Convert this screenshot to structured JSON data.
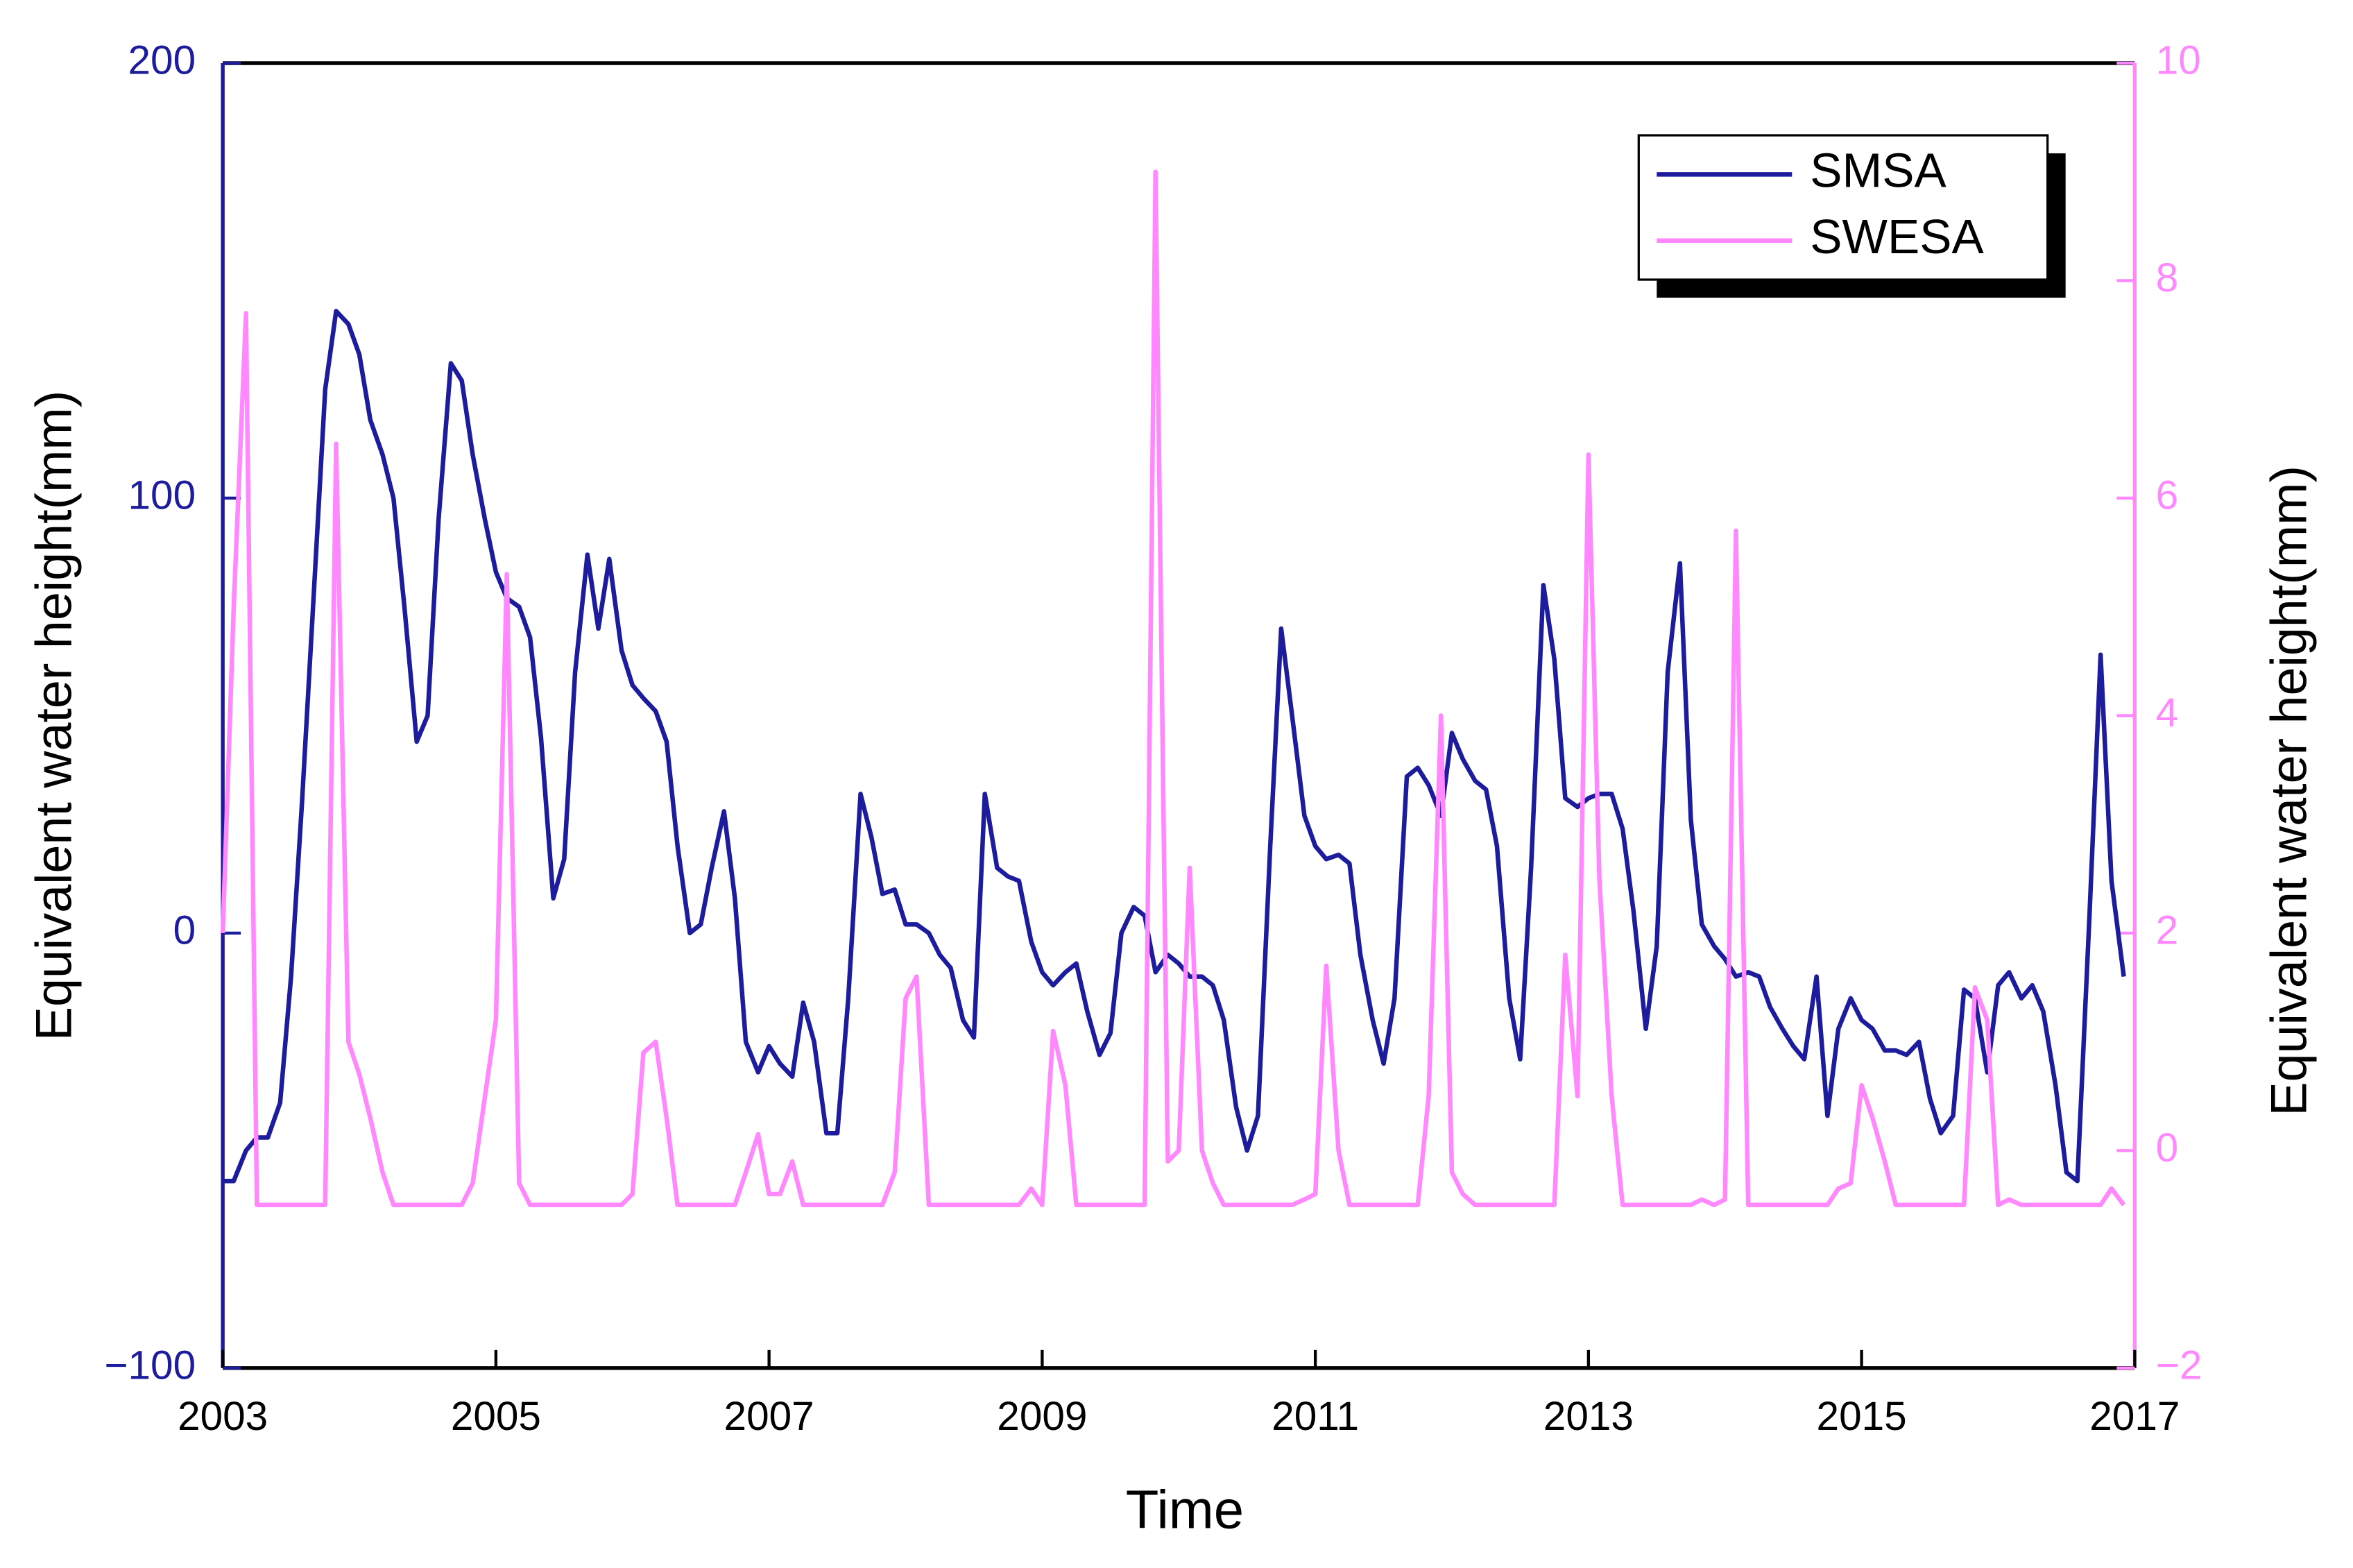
{
  "chart_data": {
    "type": "line",
    "xlabel": "Time",
    "ylabel": "Equivalent water height(mm)",
    "y2label": "Equivalent water height(mm)",
    "xlim": [
      2003,
      2017
    ],
    "xticks": [
      2003,
      2005,
      2007,
      2009,
      2011,
      2013,
      2015,
      2017
    ],
    "ylim": [
      -100,
      200
    ],
    "yticks": [
      {
        "value": -100,
        "label": "−100"
      },
      0,
      100,
      200
    ],
    "y2lim": [
      -2,
      10
    ],
    "y2ticks": [
      {
        "value": -2,
        "label": "−2"
      },
      0,
      2,
      4,
      6,
      8,
      10
    ],
    "legend": "upper right",
    "grid": false,
    "x": [
      2003.0,
      2003.08,
      2003.17,
      2003.25,
      2003.33,
      2003.42,
      2003.5,
      2003.58,
      2003.67,
      2003.75,
      2003.83,
      2003.92,
      2004.0,
      2004.08,
      2004.17,
      2004.25,
      2004.33,
      2004.42,
      2004.5,
      2004.58,
      2004.67,
      2004.75,
      2004.83,
      2004.92,
      2005.0,
      2005.08,
      2005.17,
      2005.25,
      2005.33,
      2005.42,
      2005.5,
      2005.58,
      2005.67,
      2005.75,
      2005.83,
      2005.92,
      2006.0,
      2006.08,
      2006.17,
      2006.25,
      2006.33,
      2006.42,
      2006.5,
      2006.58,
      2006.67,
      2006.75,
      2006.83,
      2006.92,
      2007.0,
      2007.08,
      2007.17,
      2007.25,
      2007.33,
      2007.42,
      2007.5,
      2007.58,
      2007.67,
      2007.75,
      2007.83,
      2007.92,
      2008.0,
      2008.08,
      2008.17,
      2008.25,
      2008.33,
      2008.42,
      2008.5,
      2008.58,
      2008.67,
      2008.75,
      2008.83,
      2008.92,
      2009.0,
      2009.08,
      2009.17,
      2009.25,
      2009.33,
      2009.42,
      2009.5,
      2009.58,
      2009.67,
      2009.75,
      2009.83,
      2009.92,
      2010.0,
      2010.08,
      2010.17,
      2010.25,
      2010.33,
      2010.42,
      2010.5,
      2010.58,
      2010.67,
      2010.75,
      2010.83,
      2010.92,
      2011.0,
      2011.08,
      2011.17,
      2011.25,
      2011.33,
      2011.42,
      2011.5,
      2011.58,
      2011.67,
      2011.75,
      2011.83,
      2011.92,
      2012.0,
      2012.08,
      2012.17,
      2012.25,
      2012.33,
      2012.42,
      2012.5,
      2012.58,
      2012.67,
      2012.75,
      2012.83,
      2012.92,
      2013.0,
      2013.08,
      2013.17,
      2013.25,
      2013.33,
      2013.42,
      2013.5,
      2013.58,
      2013.67,
      2013.75,
      2013.83,
      2013.92,
      2014.0,
      2014.08,
      2014.17,
      2014.25,
      2014.33,
      2014.42,
      2014.5,
      2014.58,
      2014.67,
      2014.75,
      2014.83,
      2014.92,
      2015.0,
      2015.08,
      2015.17,
      2015.25,
      2015.33,
      2015.42,
      2015.5,
      2015.58,
      2015.67,
      2015.75,
      2015.83,
      2015.92,
      2016.0,
      2016.08,
      2016.17,
      2016.25,
      2016.33,
      2016.42,
      2016.5,
      2016.58,
      2016.67,
      2016.75,
      2016.83,
      2016.92
    ],
    "series": [
      {
        "name": "SMSA",
        "color": "#1c1c9c",
        "values": [
          -57,
          -57,
          -50,
          -47,
          -47,
          -39,
          -10,
          30,
          80,
          125,
          143,
          140,
          133,
          118,
          110,
          100,
          75,
          44,
          50,
          95,
          131,
          127,
          110,
          95,
          83,
          77,
          75,
          68,
          45,
          8,
          17,
          60,
          87,
          70,
          86,
          65,
          57,
          54,
          51,
          44,
          20,
          0,
          2,
          15,
          28,
          8,
          -25,
          -32,
          -26,
          -30,
          -33,
          -16,
          -25,
          -46,
          -46,
          -15,
          32,
          22,
          9,
          10,
          2,
          2,
          0,
          -5,
          -8,
          -20,
          -24,
          32,
          15,
          13,
          12,
          -2,
          -9,
          -12,
          -9,
          -7,
          -18,
          -28,
          -23,
          0,
          6,
          4,
          -9,
          -5,
          -7,
          -10,
          -10,
          -12,
          -20,
          -40,
          -50,
          -42,
          20,
          70,
          50,
          27,
          20,
          17,
          18,
          16,
          -5,
          -20,
          -30,
          -15,
          36,
          38,
          34,
          27,
          46,
          40,
          35,
          33,
          20,
          -15,
          -29,
          15,
          80,
          63,
          31,
          29,
          31,
          32,
          32,
          24,
          5,
          -22,
          -3,
          60,
          85,
          26,
          2,
          -3,
          -6,
          -10,
          -9,
          -10,
          -17,
          -22,
          -26,
          -29,
          -10,
          -42,
          -22,
          -15,
          -20,
          -22,
          -27,
          -27,
          -28,
          -25,
          -38,
          -46,
          -42,
          -13,
          -15,
          -32,
          -12,
          -9,
          -15,
          -12,
          -18,
          -35,
          -55,
          -57,
          5,
          64,
          12,
          -10
        ]
      },
      {
        "name": "SWESA",
        "color": "#ff88ff",
        "axis": "y2",
        "values": [
          2.0,
          5.0,
          7.7,
          -0.5,
          -0.5,
          -0.5,
          -0.5,
          -0.5,
          -0.5,
          -0.5,
          6.5,
          1.0,
          0.7,
          0.3,
          -0.2,
          -0.5,
          -0.5,
          -0.5,
          -0.5,
          -0.5,
          -0.5,
          -0.5,
          -0.3,
          0.5,
          1.2,
          5.3,
          -0.3,
          -0.5,
          -0.5,
          -0.5,
          -0.5,
          -0.5,
          -0.5,
          -0.5,
          -0.5,
          -0.5,
          -0.4,
          0.9,
          1.0,
          0.3,
          -0.5,
          -0.5,
          -0.5,
          -0.5,
          -0.5,
          -0.5,
          -0.2,
          0.15,
          -0.4,
          -0.4,
          -0.1,
          -0.5,
          -0.5,
          -0.5,
          -0.5,
          -0.5,
          -0.5,
          -0.5,
          -0.5,
          -0.2,
          1.4,
          1.6,
          -0.5,
          -0.5,
          -0.5,
          -0.5,
          -0.5,
          -0.5,
          -0.5,
          -0.5,
          -0.5,
          -0.35,
          -0.5,
          1.1,
          0.6,
          -0.5,
          -0.5,
          -0.5,
          -0.5,
          -0.5,
          -0.5,
          -0.5,
          9.0,
          -0.1,
          0.0,
          2.6,
          0.0,
          -0.3,
          -0.5,
          -0.5,
          -0.5,
          -0.5,
          -0.5,
          -0.5,
          -0.5,
          -0.45,
          -0.4,
          1.7,
          0.0,
          -0.5,
          -0.5,
          -0.5,
          -0.5,
          -0.5,
          -0.5,
          -0.5,
          0.5,
          4.0,
          -0.2,
          -0.4,
          -0.5,
          -0.5,
          -0.5,
          -0.5,
          -0.5,
          -0.5,
          -0.5,
          -0.5,
          1.8,
          0.5,
          6.4,
          2.5,
          0.5,
          -0.5,
          -0.5,
          -0.5,
          -0.5,
          -0.5,
          -0.5,
          -0.5,
          -0.45,
          -0.5,
          -0.45,
          5.7,
          -0.5,
          -0.5,
          -0.5,
          -0.5,
          -0.5,
          -0.5,
          -0.5,
          -0.5,
          -0.35,
          -0.3,
          0.6,
          0.3,
          -0.1,
          -0.5,
          -0.5,
          -0.5,
          -0.5,
          -0.5,
          -0.5,
          -0.5,
          1.5,
          1.2,
          -0.5,
          -0.45,
          -0.5,
          -0.5,
          -0.5,
          -0.5,
          -0.5,
          -0.5,
          -0.5,
          -0.5,
          -0.35,
          -0.5
        ]
      }
    ]
  }
}
